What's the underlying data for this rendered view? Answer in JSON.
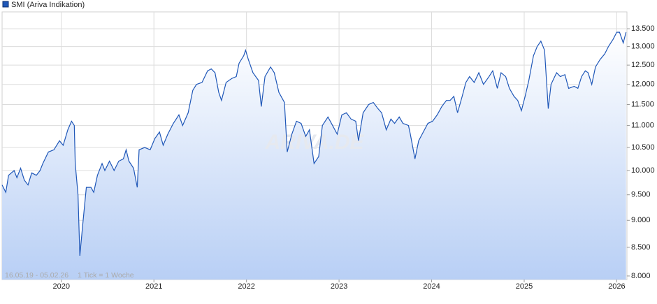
{
  "chart_data": {
    "type": "line",
    "watermark": "ARIVA.DE",
    "range_note": "16.05.19 - 05.02.26",
    "tick_note": "1 Tick = 1 Woche",
    "legend": "top-left",
    "grid": true,
    "log": true,
    "xlim": [
      2019.36,
      2026.11
    ],
    "xticks": [
      2020,
      2021,
      2022,
      2023,
      2024,
      2025,
      2026
    ],
    "ylim": [
      7940,
      13990
    ],
    "yticks": [
      {
        "value": 8000,
        "label": "8.000"
      },
      {
        "value": 8500,
        "label": "8.500"
      },
      {
        "value": 9000,
        "label": "9.000"
      },
      {
        "value": 9500,
        "label": "9.500"
      },
      {
        "value": 10000,
        "label": "10.000"
      },
      {
        "value": 10500,
        "label": "10.500"
      },
      {
        "value": 11000,
        "label": "11.000"
      },
      {
        "value": 11500,
        "label": "11.500"
      },
      {
        "value": 12000,
        "label": "12.000"
      },
      {
        "value": 12500,
        "label": "12.500"
      },
      {
        "value": 13000,
        "label": "13.000"
      },
      {
        "value": 13500,
        "label": "13.500"
      }
    ],
    "x": [
      2019.36,
      2019.4,
      2019.43,
      2019.49,
      2019.52,
      2019.56,
      2019.6,
      2019.64,
      2019.68,
      2019.73,
      2019.77,
      2019.8,
      2019.86,
      2019.92,
      2019.98,
      2020.02,
      2020.07,
      2020.11,
      2020.14,
      2020.15,
      2020.18,
      2020.2,
      2020.23,
      2020.27,
      2020.32,
      2020.35,
      2020.39,
      2020.44,
      2020.47,
      2020.52,
      2020.57,
      2020.62,
      2020.67,
      2020.7,
      2020.73,
      2020.78,
      2020.82,
      2020.84,
      2020.9,
      2020.96,
      2021.01,
      2021.06,
      2021.1,
      2021.15,
      2021.21,
      2021.27,
      2021.31,
      2021.37,
      2021.42,
      2021.46,
      2021.52,
      2021.58,
      2021.62,
      2021.66,
      2021.7,
      2021.73,
      2021.78,
      2021.84,
      2021.89,
      2021.92,
      2021.97,
      2021.99,
      2022.02,
      2022.07,
      2022.13,
      2022.16,
      2022.2,
      2022.26,
      2022.3,
      2022.35,
      2022.41,
      2022.44,
      2022.49,
      2022.54,
      2022.59,
      2022.64,
      2022.68,
      2022.73,
      2022.78,
      2022.82,
      2022.88,
      2022.93,
      2022.98,
      2023.03,
      2023.08,
      2023.13,
      2023.18,
      2023.21,
      2023.26,
      2023.32,
      2023.37,
      2023.42,
      2023.46,
      2023.51,
      2023.56,
      2023.6,
      2023.65,
      2023.69,
      2023.75,
      2023.77,
      2023.82,
      2023.86,
      2023.91,
      2023.96,
      2024.01,
      2024.06,
      2024.11,
      2024.16,
      2024.2,
      2024.24,
      2024.28,
      2024.33,
      2024.37,
      2024.41,
      2024.46,
      2024.51,
      2024.56,
      2024.62,
      2024.66,
      2024.71,
      2024.75,
      2024.8,
      2024.84,
      2024.89,
      2024.93,
      2024.97,
      2025.01,
      2025.05,
      2025.1,
      2025.14,
      2025.18,
      2025.22,
      2025.26,
      2025.29,
      2025.35,
      2025.39,
      2025.44,
      2025.48,
      2025.54,
      2025.58,
      2025.62,
      2025.66,
      2025.69,
      2025.73,
      2025.77,
      2025.82,
      2025.87,
      2025.91,
      2025.96,
      2026.0,
      2026.03,
      2026.07,
      2026.1
    ],
    "series": [
      {
        "name": "SMI (Ariva Indikation)",
        "color": "#1f57b8",
        "values": [
          9700,
          9550,
          9900,
          10000,
          9850,
          10050,
          9800,
          9700,
          9950,
          9900,
          10000,
          10150,
          10400,
          10450,
          10650,
          10550,
          10900,
          11100,
          11000,
          10150,
          9500,
          8350,
          8900,
          9650,
          9650,
          9550,
          9900,
          10150,
          10000,
          10200,
          10000,
          10200,
          10250,
          10450,
          10200,
          10050,
          9650,
          10450,
          10500,
          10450,
          10700,
          10850,
          10550,
          10800,
          11050,
          11250,
          11000,
          11300,
          11850,
          12000,
          12050,
          12350,
          12400,
          12300,
          11800,
          11600,
          12050,
          12150,
          12200,
          12550,
          12750,
          12900,
          12650,
          12300,
          12100,
          11450,
          12200,
          12450,
          12300,
          11800,
          11550,
          10400,
          10800,
          11100,
          11050,
          10750,
          10900,
          10150,
          10300,
          11000,
          11200,
          11000,
          10800,
          11250,
          11300,
          11150,
          11100,
          10650,
          11300,
          11500,
          11550,
          11400,
          11300,
          10900,
          11150,
          11050,
          11200,
          11050,
          11000,
          10800,
          10250,
          10650,
          10850,
          11050,
          11100,
          11250,
          11450,
          11600,
          11600,
          11700,
          11300,
          11700,
          12050,
          12200,
          12050,
          12300,
          12000,
          12200,
          12350,
          11900,
          12300,
          12200,
          11900,
          11700,
          11600,
          11350,
          11700,
          12100,
          12750,
          13000,
          13150,
          12900,
          11400,
          12000,
          12300,
          12200,
          12250,
          11900,
          11950,
          11900,
          12200,
          12350,
          12300,
          12000,
          12450,
          12650,
          12800,
          13000,
          13200,
          13400,
          13400,
          13100,
          13400
        ]
      }
    ]
  }
}
